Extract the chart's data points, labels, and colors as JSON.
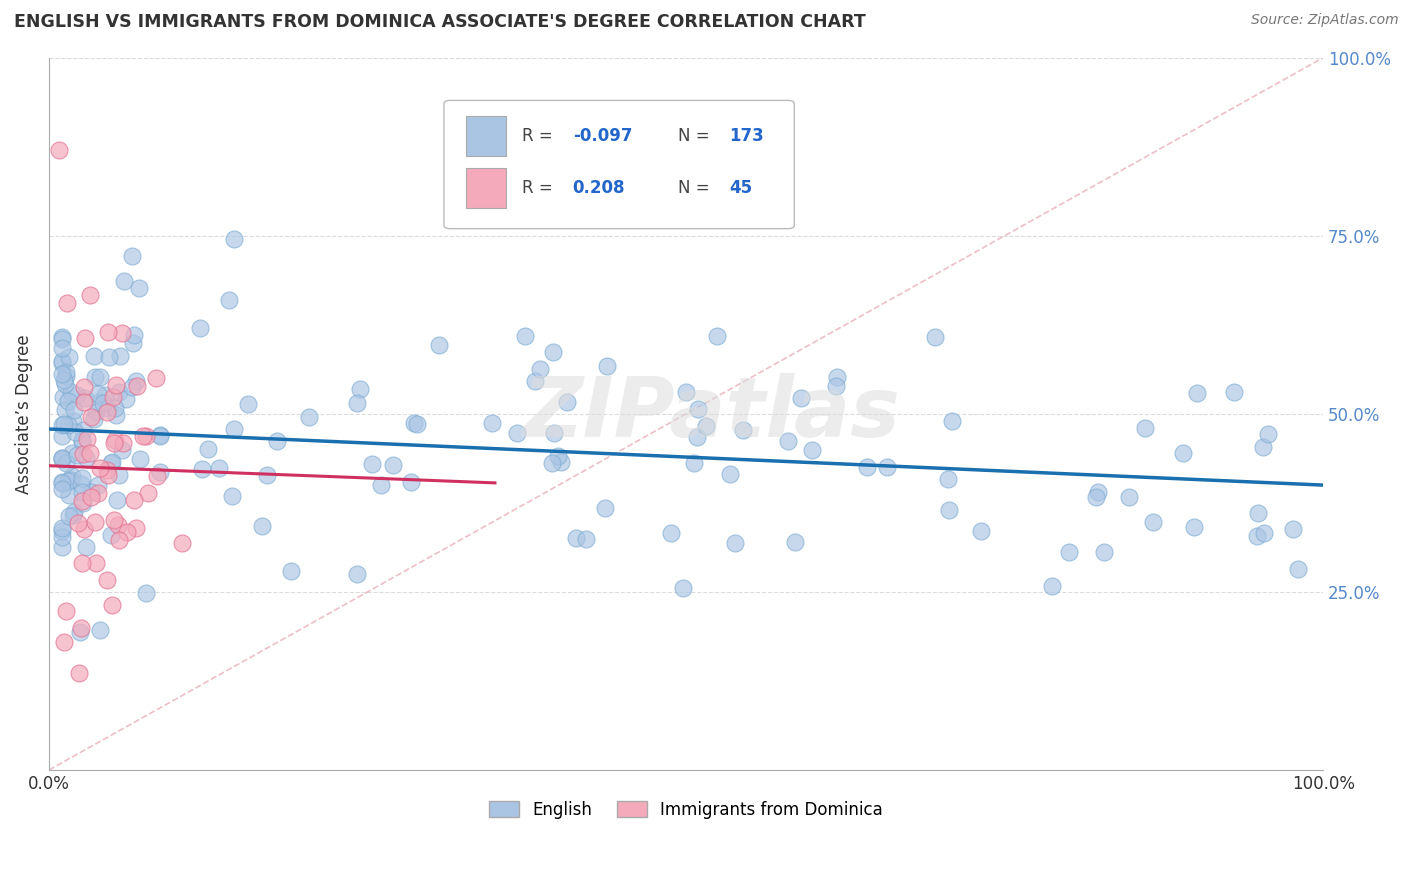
{
  "title": "ENGLISH VS IMMIGRANTS FROM DOMINICA ASSOCIATE'S DEGREE CORRELATION CHART",
  "source_text": "Source: ZipAtlas.com",
  "ylabel": "Associate’s Degree",
  "watermark": "ZIPatlas",
  "english_R": -0.097,
  "english_N": 173,
  "dominica_R": 0.208,
  "dominica_N": 45,
  "english_color": "#aac4e4",
  "english_edge_color": "#7aaad0",
  "english_line_color": "#1a6faf",
  "dominica_color": "#f4aabb",
  "dominica_edge_color": "#e07090",
  "dominica_line_color": "#d03060",
  "diag_line_color": "#e8b0b8",
  "right_tick_color": "#5588cc",
  "background_color": "#ffffff",
  "grid_color": "#cccccc",
  "legend_label_english": "English",
  "legend_label_dominica": "Immigrants from Dominica"
}
